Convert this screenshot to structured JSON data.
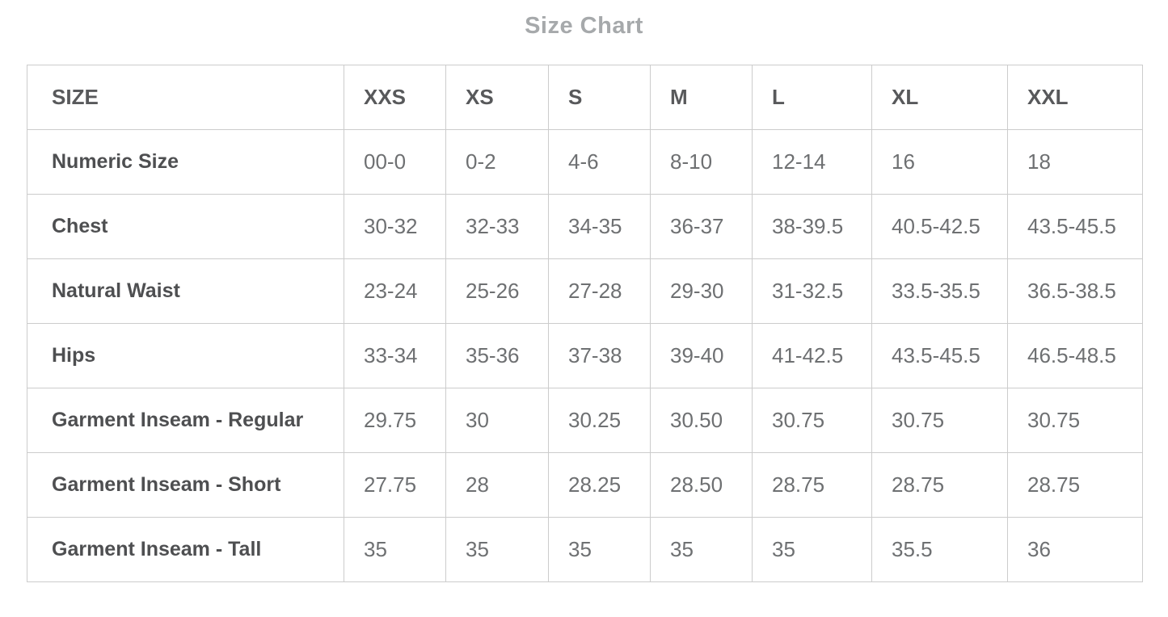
{
  "page": {
    "title": "Size Chart"
  },
  "colors": {
    "title_text": "#a6a9ab",
    "header_text": "#58595b",
    "label_text": "#4e4f51",
    "value_text": "#6e7072",
    "border": "#cccccc",
    "background": "#ffffff"
  },
  "table": {
    "columns": [
      "SIZE",
      "XXS",
      "XS",
      "S",
      "M",
      "L",
      "XL",
      "XXL"
    ],
    "rows": [
      {
        "label": "Numeric Size",
        "values": [
          "00-0",
          "0-2",
          "4-6",
          "8-10",
          "12-14",
          "16",
          "18"
        ]
      },
      {
        "label": "Chest",
        "values": [
          "30-32",
          "32-33",
          "34-35",
          "36-37",
          "38-39.5",
          "40.5-42.5",
          "43.5-45.5"
        ]
      },
      {
        "label": "Natural Waist",
        "values": [
          "23-24",
          "25-26",
          "27-28",
          "29-30",
          "31-32.5",
          "33.5-35.5",
          "36.5-38.5"
        ]
      },
      {
        "label": "Hips",
        "values": [
          "33-34",
          "35-36",
          "37-38",
          "39-40",
          "41-42.5",
          "43.5-45.5",
          "46.5-48.5"
        ]
      },
      {
        "label": "Garment Inseam - Regular",
        "values": [
          "29.75",
          "30",
          "30.25",
          "30.50",
          "30.75",
          "30.75",
          "30.75"
        ]
      },
      {
        "label": "Garment Inseam - Short",
        "values": [
          "27.75",
          "28",
          "28.25",
          "28.50",
          "28.75",
          "28.75",
          "28.75"
        ]
      },
      {
        "label": "Garment Inseam - Tall",
        "values": [
          "35",
          "35",
          "35",
          "35",
          "35",
          "35.5",
          "36"
        ]
      }
    ]
  },
  "chart_data": {
    "type": "table",
    "title": "Size Chart",
    "columns": [
      "SIZE",
      "XXS",
      "XS",
      "S",
      "M",
      "L",
      "XL",
      "XXL"
    ],
    "rows": [
      [
        "Numeric Size",
        "00-0",
        "0-2",
        "4-6",
        "8-10",
        "12-14",
        "16",
        "18"
      ],
      [
        "Chest",
        "30-32",
        "32-33",
        "34-35",
        "36-37",
        "38-39.5",
        "40.5-42.5",
        "43.5-45.5"
      ],
      [
        "Natural Waist",
        "23-24",
        "25-26",
        "27-28",
        "29-30",
        "31-32.5",
        "33.5-35.5",
        "36.5-38.5"
      ],
      [
        "Hips",
        "33-34",
        "35-36",
        "37-38",
        "39-40",
        "41-42.5",
        "43.5-45.5",
        "46.5-48.5"
      ],
      [
        "Garment Inseam - Regular",
        "29.75",
        "30",
        "30.25",
        "30.50",
        "30.75",
        "30.75",
        "30.75"
      ],
      [
        "Garment Inseam - Short",
        "27.75",
        "28",
        "28.25",
        "28.50",
        "28.75",
        "28.75",
        "28.75"
      ],
      [
        "Garment Inseam - Tall",
        "35",
        "35",
        "35",
        "35",
        "35",
        "35.5",
        "36"
      ]
    ]
  }
}
